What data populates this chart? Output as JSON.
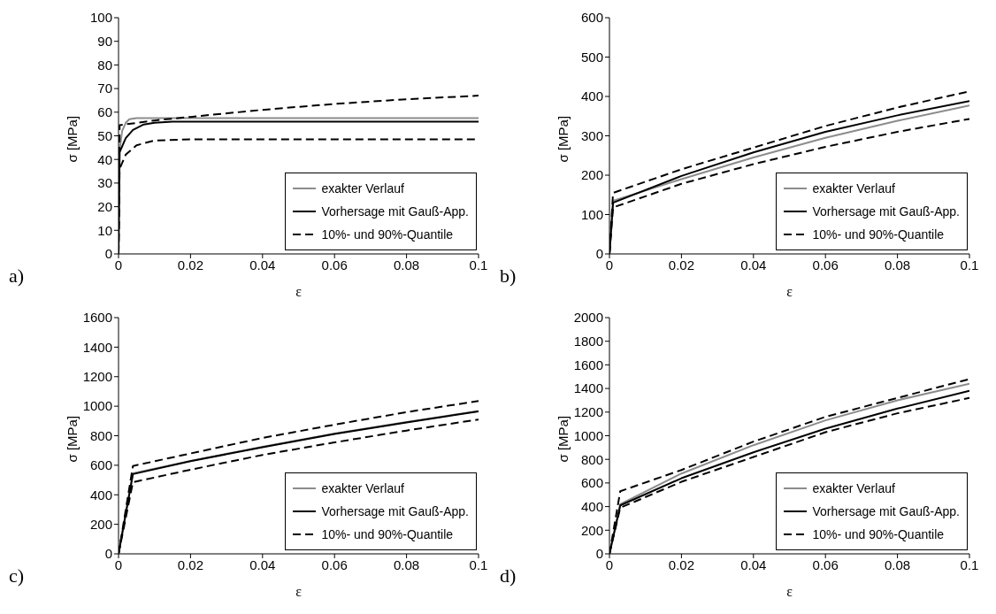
{
  "chart_data": [
    {
      "type": "line",
      "xlabel": "ε",
      "ylabel": "σ [MPa]",
      "xlim": [
        0,
        0.1
      ],
      "xticks": [
        0,
        0.02,
        0.04,
        0.06,
        0.08,
        0.1
      ],
      "ylim": [
        0,
        100
      ],
      "yticks": [
        0,
        10,
        20,
        30,
        40,
        50,
        60,
        70,
        80,
        90,
        100
      ],
      "grid": false,
      "legend": "bottom right",
      "annotations": [
        "a)"
      ],
      "series": [
        {
          "name": "exakter Verlauf",
          "color": "#8c8c8c",
          "x": [
            0,
            0.0003,
            0.001,
            0.002,
            0.003,
            0.005,
            0.1
          ],
          "values": [
            0,
            44,
            52,
            55.5,
            57,
            57.5,
            57.5
          ]
        },
        {
          "name": "Vorhersage mit Gauß-App.",
          "color": "#000000",
          "x": [
            0,
            0.0003,
            0.002,
            0.004,
            0.007,
            0.01,
            0.015,
            0.1
          ],
          "values": [
            0,
            43,
            49,
            52.5,
            54.8,
            55.5,
            56,
            56
          ]
        },
        {
          "name": "10%- und 90%-Quantile",
          "color": "#000000",
          "line_style": "dashed",
          "x": [
            0,
            0.0003,
            0.01,
            0.02,
            0.04,
            0.06,
            0.08,
            0.1
          ],
          "values": [
            0,
            54.5,
            56.5,
            58,
            61,
            63.5,
            65.5,
            67
          ]
        },
        {
          "color": "#000000",
          "line_style": "dashed",
          "x": [
            0,
            0.0003,
            0.002,
            0.005,
            0.01,
            0.02,
            0.1
          ],
          "values": [
            0,
            36,
            42,
            46,
            48,
            48.5,
            48.5
          ]
        }
      ]
    },
    {
      "type": "line",
      "xlabel": "ε",
      "ylabel": "σ [MPa]",
      "xlim": [
        0,
        0.1
      ],
      "xticks": [
        0,
        0.02,
        0.04,
        0.06,
        0.08,
        0.1
      ],
      "ylim": [
        0,
        600
      ],
      "yticks": [
        0,
        100,
        200,
        300,
        400,
        500,
        600
      ],
      "grid": false,
      "legend": "bottom right",
      "annotations": [
        "b)"
      ],
      "series": [
        {
          "name": "exakter Verlauf",
          "color": "#8c8c8c",
          "x": [
            0,
            0.001,
            0.02,
            0.04,
            0.06,
            0.08,
            0.1
          ],
          "values": [
            0,
            135,
            190,
            245,
            295,
            338,
            377
          ]
        },
        {
          "name": "Vorhersage mit Gauß-App.",
          "color": "#000000",
          "x": [
            0,
            0.001,
            0.02,
            0.04,
            0.06,
            0.08,
            0.1
          ],
          "values": [
            0,
            130,
            198,
            258,
            310,
            352,
            388
          ]
        },
        {
          "name": "10%- und 90%-Quantile",
          "color": "#000000",
          "line_style": "dashed",
          "x": [
            0,
            0.001,
            0.02,
            0.04,
            0.06,
            0.08,
            0.1
          ],
          "values": [
            0,
            155,
            215,
            270,
            325,
            372,
            413
          ]
        },
        {
          "color": "#000000",
          "line_style": "dashed",
          "x": [
            0,
            0.001,
            0.02,
            0.04,
            0.06,
            0.08,
            0.1
          ],
          "values": [
            0,
            118,
            178,
            228,
            272,
            310,
            343
          ]
        }
      ]
    },
    {
      "type": "line",
      "xlabel": "ε",
      "ylabel": "σ [MPa]",
      "xlim": [
        0,
        0.1
      ],
      "xticks": [
        0,
        0.02,
        0.04,
        0.06,
        0.08,
        0.1
      ],
      "ylim": [
        0,
        1600
      ],
      "yticks": [
        0,
        200,
        400,
        600,
        800,
        1000,
        1200,
        1400,
        1600
      ],
      "grid": false,
      "legend": "bottom right",
      "annotations": [
        "c)"
      ],
      "series": [
        {
          "name": "exakter Verlauf",
          "color": "#8c8c8c",
          "x": [
            0,
            0.004,
            0.02,
            0.04,
            0.06,
            0.08,
            0.1
          ],
          "values": [
            0,
            545,
            630,
            725,
            815,
            893,
            968
          ]
        },
        {
          "name": "Vorhersage mit Gauß-App.",
          "color": "#000000",
          "x": [
            0,
            0.004,
            0.02,
            0.04,
            0.06,
            0.08,
            0.1
          ],
          "values": [
            0,
            540,
            628,
            722,
            812,
            890,
            965
          ]
        },
        {
          "name": "10%- und 90%-Quantile",
          "color": "#000000",
          "line_style": "dashed",
          "x": [
            0,
            0.004,
            0.02,
            0.04,
            0.06,
            0.08,
            0.1
          ],
          "values": [
            0,
            595,
            680,
            785,
            875,
            960,
            1035
          ]
        },
        {
          "color": "#000000",
          "line_style": "dashed",
          "x": [
            0,
            0.004,
            0.02,
            0.04,
            0.06,
            0.08,
            0.1
          ],
          "values": [
            0,
            485,
            570,
            670,
            755,
            835,
            910
          ]
        }
      ]
    },
    {
      "type": "line",
      "xlabel": "ε",
      "ylabel": "σ [MPa]",
      "xlim": [
        0,
        0.1
      ],
      "xticks": [
        0,
        0.02,
        0.04,
        0.06,
        0.08,
        0.1
      ],
      "ylim": [
        0,
        2000
      ],
      "yticks": [
        0,
        200,
        400,
        600,
        800,
        1000,
        1200,
        1400,
        1600,
        1800,
        2000
      ],
      "grid": false,
      "legend": "bottom right",
      "annotations": [
        "d)"
      ],
      "series": [
        {
          "name": "exakter Verlauf",
          "color": "#8c8c8c",
          "x": [
            0,
            0.003,
            0.02,
            0.04,
            0.06,
            0.08,
            0.1
          ],
          "values": [
            0,
            420,
            680,
            920,
            1130,
            1300,
            1440
          ]
        },
        {
          "name": "Vorhersage mit Gauß-App.",
          "color": "#000000",
          "x": [
            0,
            0.003,
            0.02,
            0.04,
            0.06,
            0.08,
            0.1
          ],
          "values": [
            0,
            410,
            640,
            860,
            1060,
            1230,
            1380
          ]
        },
        {
          "name": "10%- und 90%-Quantile",
          "color": "#000000",
          "line_style": "dashed",
          "x": [
            0,
            0.003,
            0.02,
            0.04,
            0.06,
            0.08,
            0.1
          ],
          "values": [
            0,
            530,
            710,
            950,
            1160,
            1320,
            1480
          ]
        },
        {
          "color": "#000000",
          "line_style": "dashed",
          "x": [
            0,
            0.003,
            0.02,
            0.04,
            0.06,
            0.08,
            0.1
          ],
          "values": [
            0,
            390,
            610,
            820,
            1030,
            1190,
            1320
          ]
        }
      ]
    }
  ]
}
